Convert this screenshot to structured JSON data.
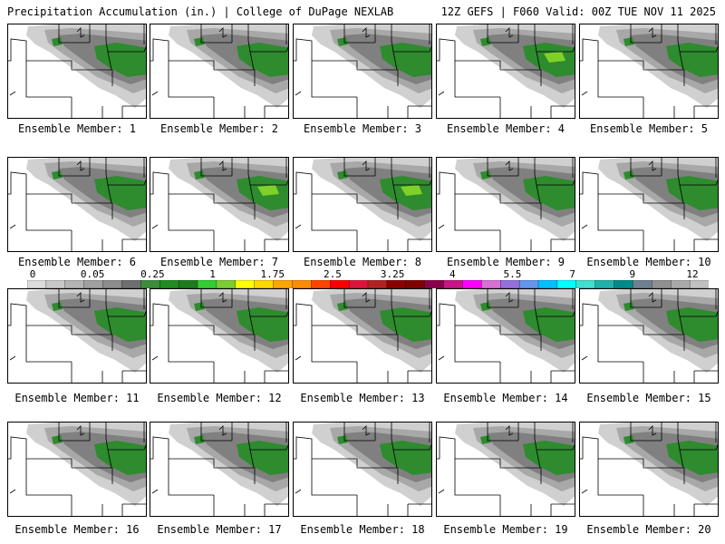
{
  "header": {
    "left": "Precipitation Accumulation (in.) | College of DuPage NEXLAB",
    "right": "12Z GEFS | F060 Valid: 00Z TUE NOV 11 2025"
  },
  "caption_prefix": "Ensemble Member: ",
  "members": [
    {
      "id": "1",
      "label": "Ensemble Member: 1",
      "core": "medium"
    },
    {
      "id": "2",
      "label": "Ensemble Member: 2",
      "core": "medium"
    },
    {
      "id": "3",
      "label": "Ensemble Member: 3",
      "core": "medium"
    },
    {
      "id": "4",
      "label": "Ensemble Member: 4",
      "core": "light-green"
    },
    {
      "id": "5",
      "label": "Ensemble Member: 5",
      "core": "medium"
    },
    {
      "id": "6",
      "label": "Ensemble Member: 6",
      "core": "medium"
    },
    {
      "id": "7",
      "label": "Ensemble Member: 7",
      "core": "light-green"
    },
    {
      "id": "8",
      "label": "Ensemble Member: 8",
      "core": "light-green"
    },
    {
      "id": "9",
      "label": "Ensemble Member: 9",
      "core": "medium"
    },
    {
      "id": "10",
      "label": "Ensemble Member: 10",
      "core": "medium"
    },
    {
      "id": "11",
      "label": "Ensemble Member: 11",
      "core": "medium"
    },
    {
      "id": "12",
      "label": "Ensemble Member: 12",
      "core": "medium"
    },
    {
      "id": "13",
      "label": "Ensemble Member: 13",
      "core": "medium"
    },
    {
      "id": "14",
      "label": "Ensemble Member: 14",
      "core": "medium"
    },
    {
      "id": "15",
      "label": "Ensemble Member: 15",
      "core": "medium"
    },
    {
      "id": "16",
      "label": "Ensemble Member: 16",
      "core": "medium"
    },
    {
      "id": "17",
      "label": "Ensemble Member: 17",
      "core": "medium"
    },
    {
      "id": "18",
      "label": "Ensemble Member: 18",
      "core": "medium"
    },
    {
      "id": "19",
      "label": "Ensemble Member: 19",
      "core": "medium"
    },
    {
      "id": "20",
      "label": "Ensemble Member: 20",
      "core": "medium"
    }
  ],
  "colorbar": {
    "labels": [
      "0",
      "0.05",
      "0.25",
      "1",
      "1.75",
      "2.5",
      "3.25",
      "4",
      "5.5",
      "7",
      "9",
      "12"
    ],
    "colors": [
      "#dcdcdc",
      "#c8c8c8",
      "#b4b4b4",
      "#a0a0a0",
      "#8c8c8c",
      "#6e6e6e",
      "#3c8c3c",
      "#228b22",
      "#1e7a1e",
      "#32cd32",
      "#7ccd32",
      "#ffff00",
      "#ffd700",
      "#ffa500",
      "#ff8c00",
      "#ff4500",
      "#ff0000",
      "#dc143c",
      "#b22222",
      "#8b0000",
      "#800000",
      "#8b004b",
      "#c71585",
      "#ff00ff",
      "#da70d6",
      "#9370db",
      "#6495ed",
      "#00bfff",
      "#00ffff",
      "#40e0d0",
      "#20b2aa",
      "#008b8b",
      "#708090",
      "#909090",
      "#a9a9a9",
      "#c0c0c0"
    ]
  },
  "colors": {
    "light_gray": "#d0d0d0",
    "mid_gray": "#a8a8a8",
    "dark_gray": "#808080",
    "green": "#2e8b2e",
    "light_green": "#7fd12a",
    "border": "#000000"
  }
}
